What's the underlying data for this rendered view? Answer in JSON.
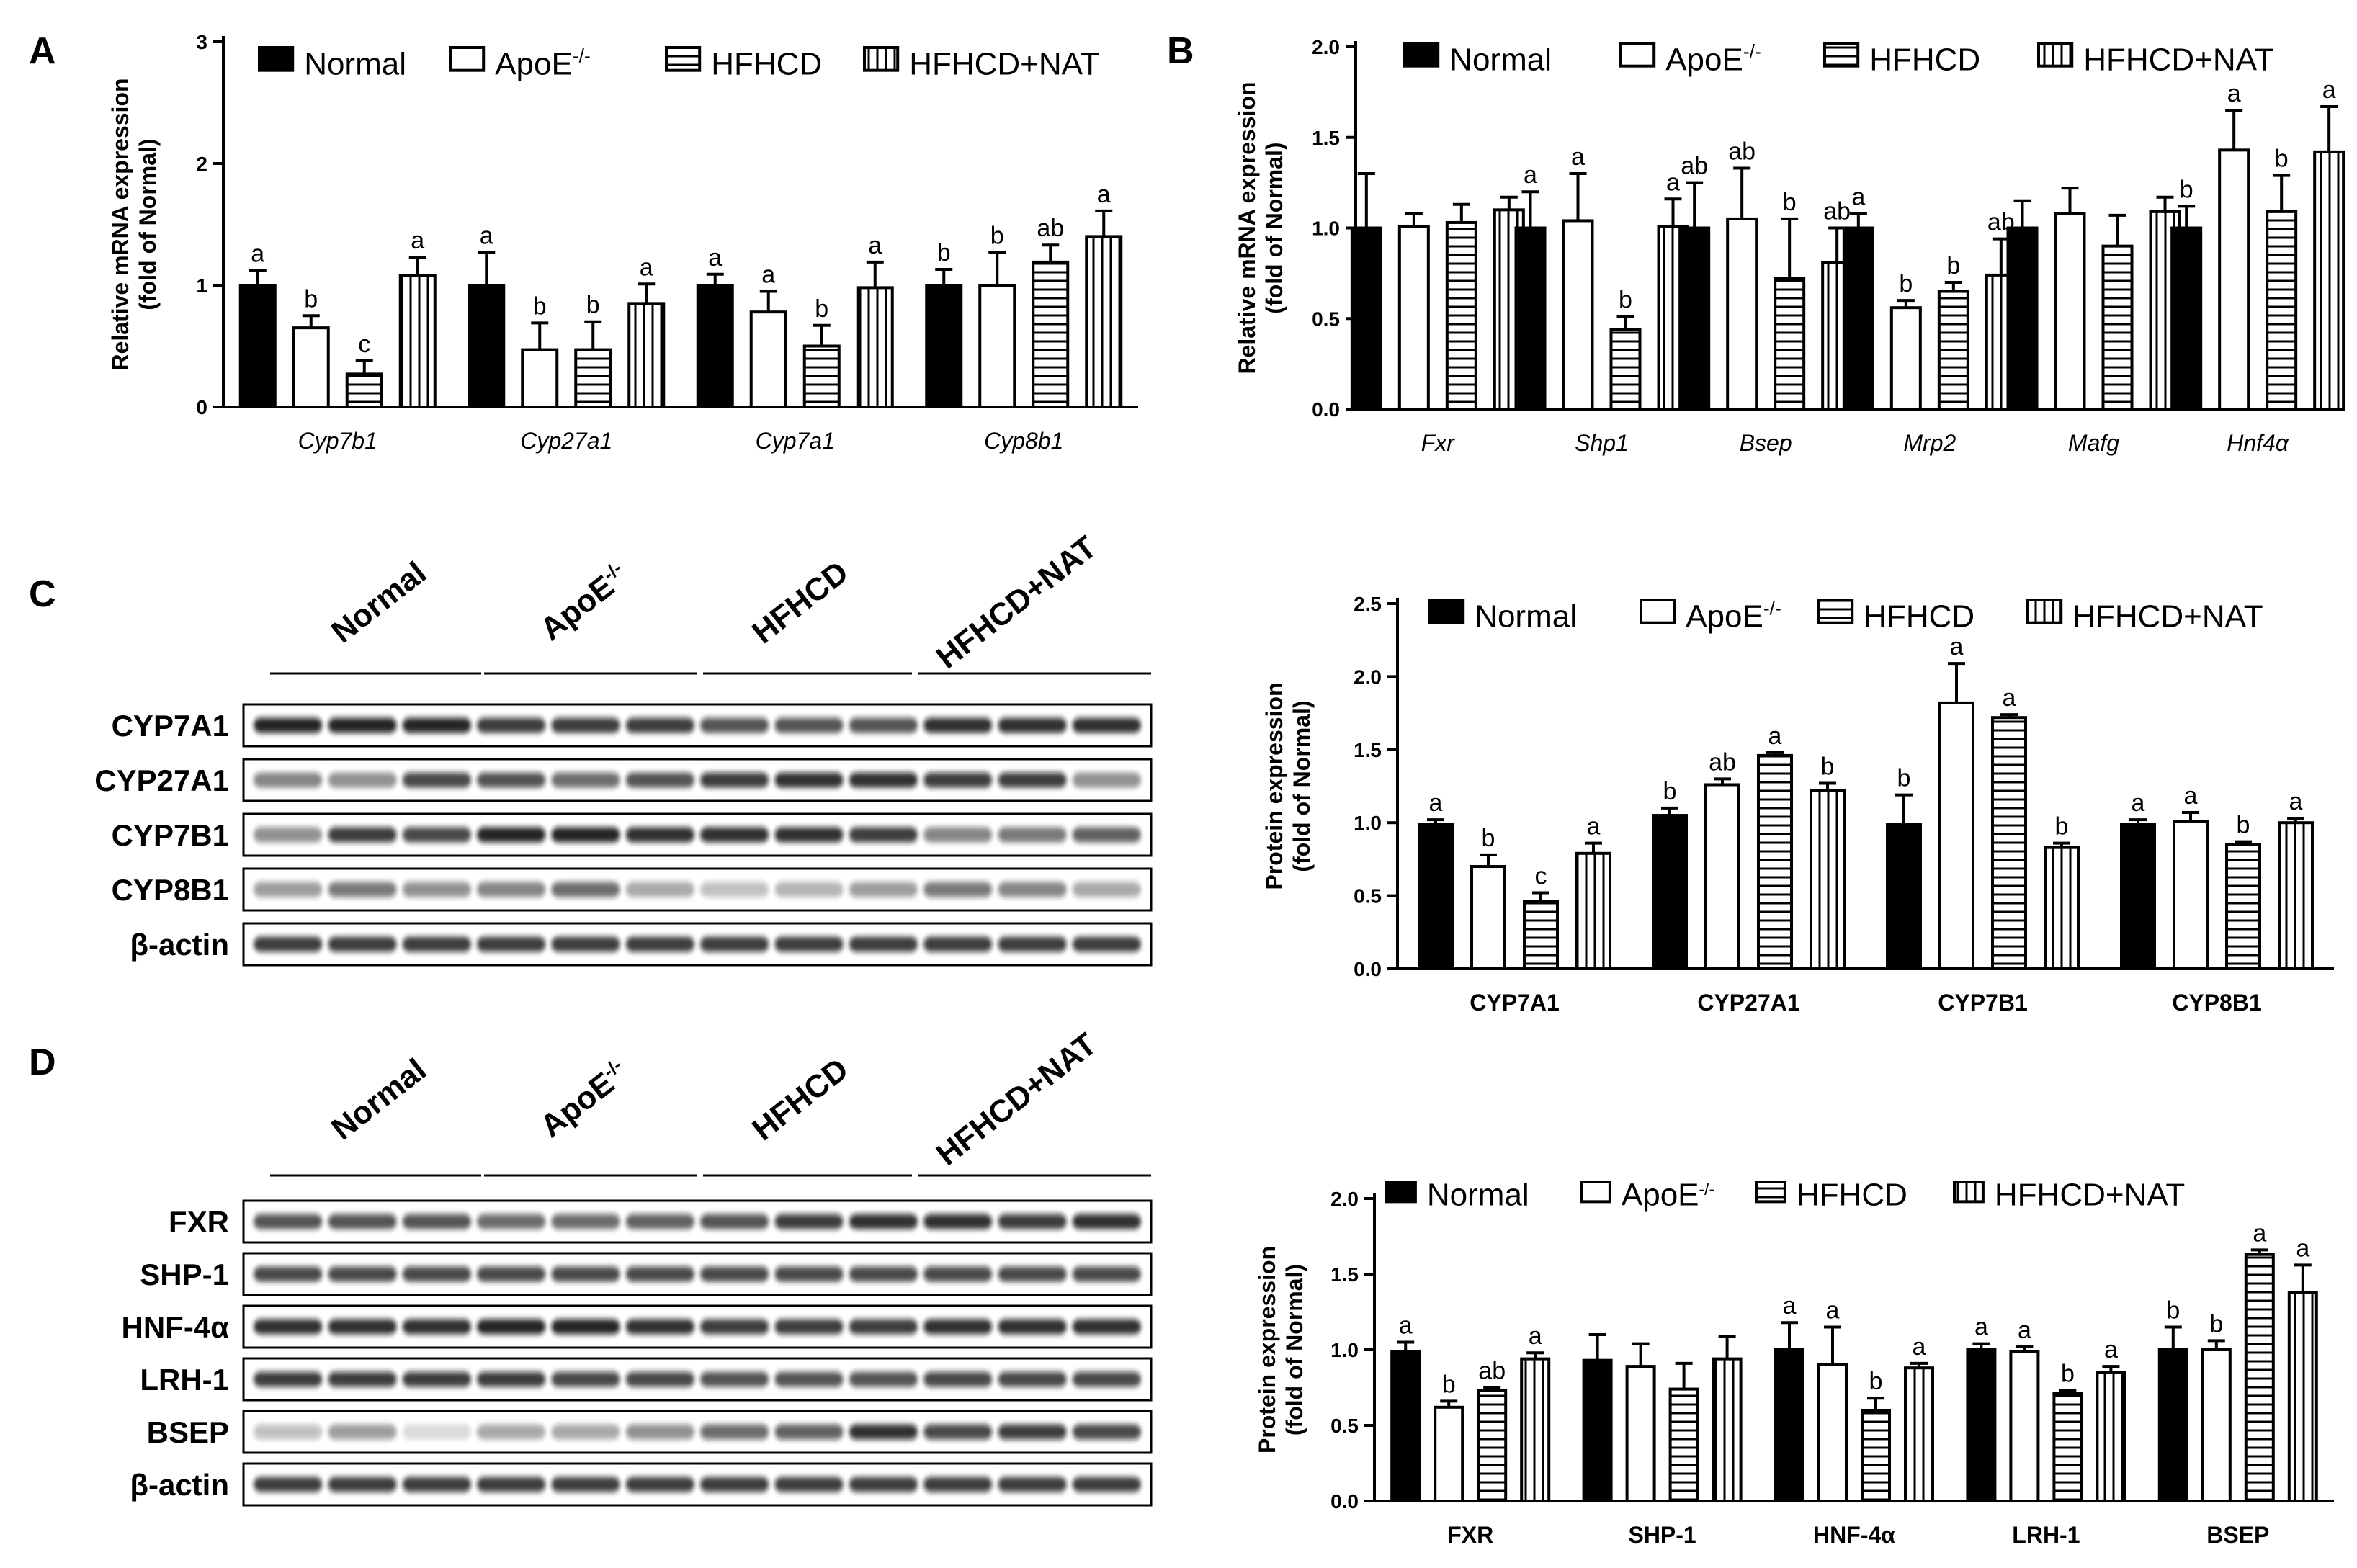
{
  "panel_letters": {
    "A": "A",
    "B": "B",
    "C": "C",
    "D": "D"
  },
  "legend": [
    "Normal",
    "ApoE",
    "HFHCD",
    "HFHCD+NAT"
  ],
  "legend_superscript": "-/-",
  "groups": [
    "Normal",
    "ApoE",
    "HFHCD",
    "HFHCD+NAT"
  ],
  "group_superscript": "-/-",
  "chart_data": [
    {
      "id": "A",
      "type": "bar",
      "ylabel": "Relative mRNA expression",
      "ylabel2": "(fold of Normal)",
      "ylim": [
        0,
        3
      ],
      "yticks": [
        "0",
        "1",
        "2",
        "3"
      ],
      "categories": [
        "Cyp7b1",
        "Cyp27a1",
        "Cyp7a1",
        "Cyp8b1"
      ],
      "series": [
        {
          "name": "Normal",
          "values": [
            1.0,
            1.0,
            1.0,
            1.0
          ],
          "errors": [
            0.12,
            0.27,
            0.09,
            0.13
          ],
          "letters": [
            "a",
            "a",
            "a",
            "b"
          ]
        },
        {
          "name": "ApoE-/-",
          "values": [
            0.65,
            0.47,
            0.78,
            1.0
          ],
          "errors": [
            0.1,
            0.22,
            0.17,
            0.27
          ],
          "letters": [
            "b",
            "b",
            "a",
            "b"
          ]
        },
        {
          "name": "HFHCD",
          "values": [
            0.27,
            0.47,
            0.5,
            1.19
          ],
          "errors": [
            0.11,
            0.23,
            0.17,
            0.14
          ],
          "letters": [
            "c",
            "b",
            "b",
            "ab"
          ]
        },
        {
          "name": "HFHCD+NAT",
          "values": [
            1.08,
            0.85,
            0.98,
            1.4
          ],
          "errors": [
            0.15,
            0.16,
            0.21,
            0.21
          ],
          "letters": [
            "a",
            "a",
            "a",
            "a"
          ]
        }
      ]
    },
    {
      "id": "B",
      "type": "bar",
      "ylabel": "Relative mRNA expression",
      "ylabel2": "(fold of Normal)",
      "ylim": [
        0,
        2
      ],
      "yticks": [
        "0.0",
        "0.5",
        "1.0",
        "1.5",
        "2.0"
      ],
      "categories": [
        "Fxr",
        "Shp1",
        "Bsep",
        "Mrp2",
        "Mafg",
        "Hnf4α"
      ],
      "series": [
        {
          "name": "Normal",
          "values": [
            1.0,
            1.0,
            1.0,
            1.0,
            1.0,
            1.0
          ],
          "errors": [
            0.3,
            0.2,
            0.25,
            0.08,
            0.15,
            0.12
          ],
          "letters": [
            "",
            "a",
            "ab",
            "a",
            "",
            "b"
          ]
        },
        {
          "name": "ApoE-/-",
          "values": [
            1.01,
            1.04,
            1.05,
            0.56,
            1.08,
            1.43
          ],
          "errors": [
            0.07,
            0.26,
            0.28,
            0.04,
            0.14,
            0.22
          ],
          "letters": [
            "",
            "a",
            "ab",
            "b",
            "",
            "a"
          ]
        },
        {
          "name": "HFHCD",
          "values": [
            1.03,
            0.44,
            0.72,
            0.65,
            0.9,
            1.09
          ],
          "errors": [
            0.1,
            0.07,
            0.33,
            0.05,
            0.17,
            0.2
          ],
          "letters": [
            "",
            "b",
            "b",
            "b",
            "",
            "b"
          ]
        },
        {
          "name": "HFHCD+NAT",
          "values": [
            1.1,
            1.01,
            0.81,
            0.74,
            1.09,
            1.42
          ],
          "errors": [
            0.07,
            0.15,
            0.19,
            0.2,
            0.08,
            0.25
          ],
          "letters": [
            "",
            "a",
            "ab",
            "ab",
            "",
            "a"
          ]
        }
      ]
    },
    {
      "id": "C",
      "type": "bar",
      "ylabel": "Protein expression",
      "ylabel2": "(fold of Normal)",
      "ylim": [
        0,
        2.5
      ],
      "yticks": [
        "0.0",
        "0.5",
        "1.0",
        "1.5",
        "2.0",
        "2.5"
      ],
      "categories": [
        "CYP7A1",
        "CYP27A1",
        "CYP7B1",
        "CYP8B1"
      ],
      "series": [
        {
          "name": "Normal",
          "values": [
            0.99,
            1.05,
            0.99,
            0.99
          ],
          "errors": [
            0.03,
            0.05,
            0.2,
            0.03
          ],
          "letters": [
            "a",
            "b",
            "b",
            "a"
          ]
        },
        {
          "name": "ApoE-/-",
          "values": [
            0.7,
            1.26,
            1.82,
            1.01
          ],
          "errors": [
            0.08,
            0.04,
            0.27,
            0.06
          ],
          "letters": [
            "b",
            "ab",
            "a",
            "a"
          ]
        },
        {
          "name": "HFHCD",
          "values": [
            0.46,
            1.46,
            1.72,
            0.85
          ],
          "errors": [
            0.06,
            0.02,
            0.02,
            0.02
          ],
          "letters": [
            "c",
            "a",
            "a",
            "b"
          ]
        },
        {
          "name": "HFHCD+NAT",
          "values": [
            0.79,
            1.22,
            0.83,
            1.0
          ],
          "errors": [
            0.07,
            0.05,
            0.03,
            0.03
          ],
          "letters": [
            "a",
            "b",
            "b",
            "a"
          ]
        }
      ]
    },
    {
      "id": "D",
      "type": "bar",
      "ylabel": "Protein expression",
      "ylabel2": "(fold of Normal)",
      "ylim": [
        0,
        2
      ],
      "yticks": [
        "0.0",
        "0.5",
        "1.0",
        "1.5",
        "2.0"
      ],
      "categories": [
        "FXR",
        "SHP-1",
        "HNF-4α",
        "LRH-1",
        "BSEP"
      ],
      "series": [
        {
          "name": "Normal",
          "values": [
            0.99,
            0.93,
            1.0,
            1.0,
            1.0
          ],
          "errors": [
            0.06,
            0.17,
            0.18,
            0.04,
            0.15
          ],
          "letters": [
            "a",
            "",
            "a",
            "a",
            "b"
          ]
        },
        {
          "name": "ApoE-/-",
          "values": [
            0.62,
            0.89,
            0.9,
            0.99,
            1.0
          ],
          "errors": [
            0.04,
            0.15,
            0.25,
            0.03,
            0.06
          ],
          "letters": [
            "b",
            "",
            "a",
            "a",
            "b"
          ]
        },
        {
          "name": "HFHCD",
          "values": [
            0.73,
            0.74,
            0.6,
            0.71,
            1.63
          ],
          "errors": [
            0.02,
            0.17,
            0.08,
            0.02,
            0.03
          ],
          "letters": [
            "ab",
            "",
            "b",
            "b",
            "a"
          ]
        },
        {
          "name": "HFHCD+NAT",
          "values": [
            0.94,
            0.94,
            0.88,
            0.85,
            1.38
          ],
          "errors": [
            0.04,
            0.15,
            0.03,
            0.04,
            0.18
          ],
          "letters": [
            "a",
            "",
            "a",
            "a",
            "a"
          ]
        }
      ]
    }
  ],
  "blots": {
    "C": [
      "CYP7A1",
      "CYP27A1",
      "CYP7B1",
      "CYP8B1",
      "β-actin"
    ],
    "D": [
      "FXR",
      "SHP-1",
      "HNF-4α",
      "LRH-1",
      "BSEP",
      "β-actin"
    ]
  }
}
